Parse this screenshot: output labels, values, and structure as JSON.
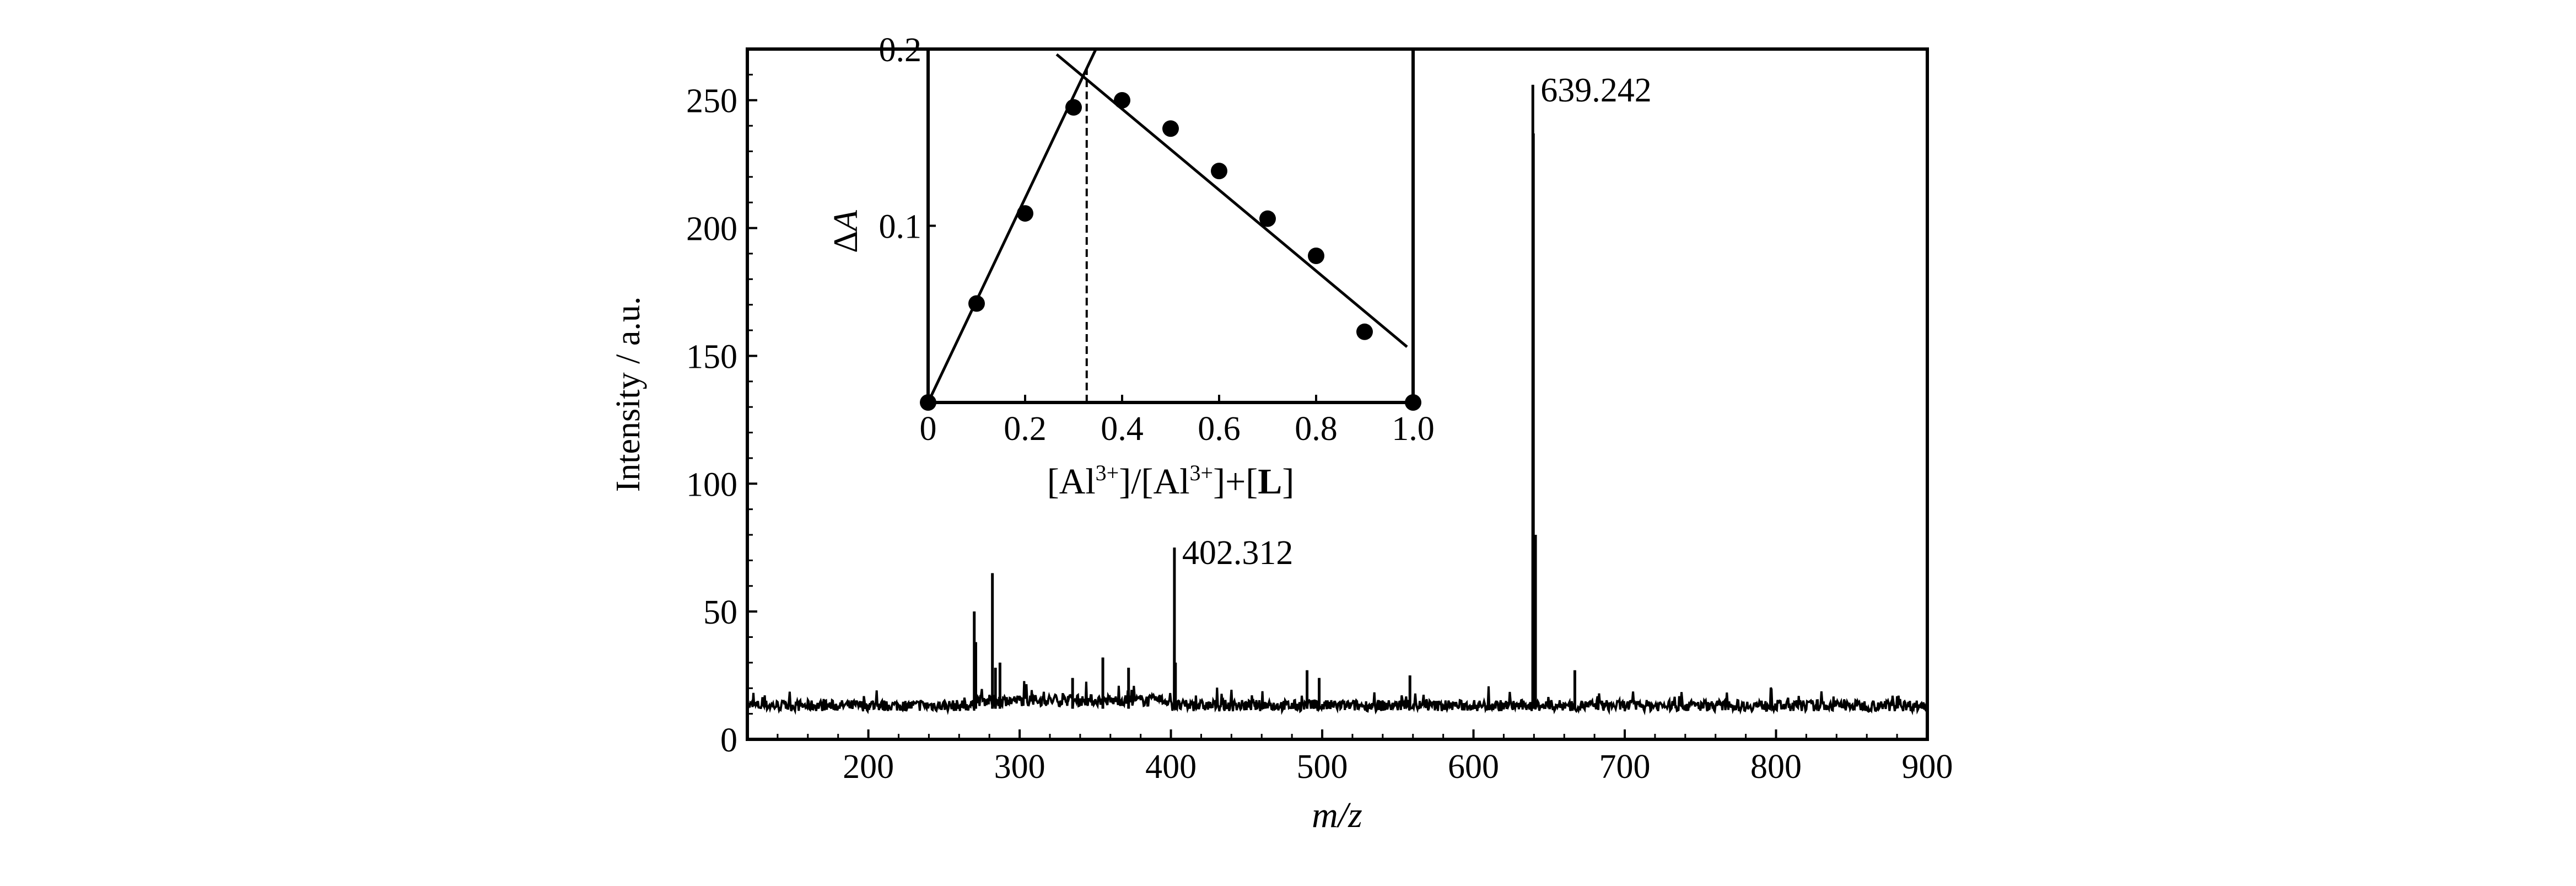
{
  "chart_data": [
    {
      "type": "line",
      "xlabel": "m/z",
      "ylabel": "Intensity / a.u.",
      "xlim": [
        120,
        900
      ],
      "ylim": [
        0,
        270
      ],
      "xticks": [
        200,
        300,
        400,
        500,
        600,
        700,
        800,
        900
      ],
      "yticks": [
        0,
        50,
        100,
        150,
        200,
        250
      ],
      "baseline_range": [
        9,
        17
      ],
      "peaks": [
        {
          "x": 270,
          "y": 50
        },
        {
          "x": 271,
          "y": 38
        },
        {
          "x": 282,
          "y": 65
        },
        {
          "x": 284,
          "y": 28
        },
        {
          "x": 287,
          "y": 30
        },
        {
          "x": 335,
          "y": 24
        },
        {
          "x": 355,
          "y": 32
        },
        {
          "x": 372,
          "y": 28
        },
        {
          "x": 402.312,
          "y": 75
        },
        {
          "x": 403,
          "y": 30
        },
        {
          "x": 490,
          "y": 27
        },
        {
          "x": 498,
          "y": 24
        },
        {
          "x": 558,
          "y": 25
        },
        {
          "x": 639.242,
          "y": 256
        },
        {
          "x": 639.6,
          "y": 237
        },
        {
          "x": 641,
          "y": 80
        },
        {
          "x": 667,
          "y": 27
        }
      ],
      "annotations": [
        {
          "text": "639.242",
          "x": 639.242,
          "y": 256
        },
        {
          "text": "402.312",
          "x": 402.312,
          "y": 75
        }
      ],
      "grid": false
    },
    {
      "type": "scatter",
      "inset": true,
      "xlabel": "[Al3+]/[Al3+]+[L]",
      "xlabel_parts": {
        "a": "[Al",
        "sup1": "3+",
        "b": "]/[Al",
        "sup2": "3+",
        "c": "]+[",
        "bold": "L",
        "d": "]"
      },
      "ylabel": "ΔA",
      "ylabel_parts": {
        "delta": "Δ",
        "var": "A"
      },
      "xlim": [
        0,
        1.0
      ],
      "ylim": [
        0,
        0.2
      ],
      "xticks": [
        "0",
        "0.2",
        "0.4",
        "0.6",
        "0.8",
        "1.0"
      ],
      "yticks": [
        "0.1",
        "0.2"
      ],
      "x": [
        0,
        0.1,
        0.2,
        0.3,
        0.4,
        0.5,
        0.6,
        0.7,
        0.8,
        0.9,
        1.0
      ],
      "y": [
        0,
        0.056,
        0.107,
        0.167,
        0.171,
        0.155,
        0.131,
        0.104,
        0.083,
        0.04,
        0
      ],
      "fit_lines": [
        {
          "from": [
            0,
            0
          ],
          "to": [
            0.346,
            0.2
          ]
        },
        {
          "from": [
            0.265,
            0.197
          ],
          "to": [
            0.9875,
            0.0315
          ]
        }
      ],
      "intersection_x": 0.327,
      "grid": false
    }
  ]
}
